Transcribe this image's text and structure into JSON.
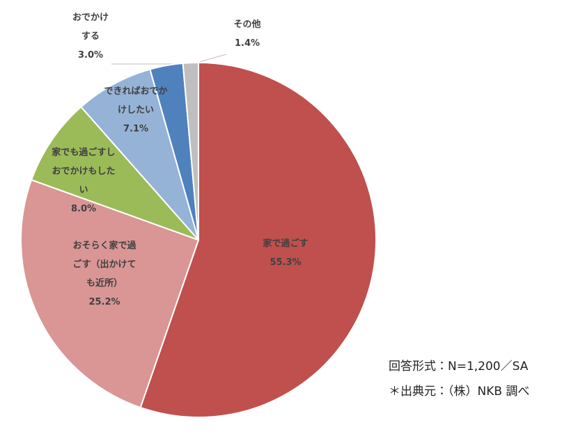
{
  "chart_data": {
    "type": "pie",
    "categories": [
      "家で過ごす",
      "おそらく家で過ごす（出かけても近所）",
      "家でも過ごすしおでかけもしたい",
      "できればおでかけしたい",
      "おでかけする",
      "その他"
    ],
    "values": [
      55.3,
      25.2,
      8.0,
      7.1,
      3.0,
      1.4
    ],
    "value_labels": [
      "55.3%",
      "25.2%",
      "8.0%",
      "7.1%",
      "3.0%",
      "1.4%"
    ],
    "colors": [
      "#c0504d",
      "#d99694",
      "#9bbb59",
      "#95b3d7",
      "#4f81bd",
      "#bfbfbf"
    ],
    "notes": [
      "回答形式：N=1,200／SA",
      "＊出典元：（株）NKB 調べ"
    ]
  }
}
